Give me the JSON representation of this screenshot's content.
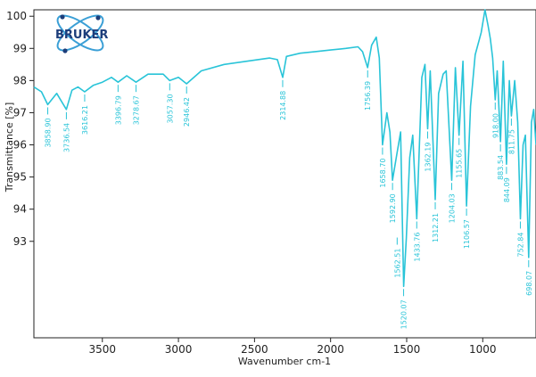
{
  "logo": {
    "text": "BRUKER",
    "accent": "#1c3d7a",
    "ring": "#3a9fd6"
  },
  "chart_data": {
    "type": "line",
    "xlabel": "Wavenumber cm-1",
    "ylabel": "Transmittance [%]",
    "xlim": [
      3950,
      650
    ],
    "ylim": [
      90,
      100.2
    ],
    "x_reversed": true,
    "xticks": [
      3500,
      3000,
      2500,
      2000,
      1500,
      1000
    ],
    "yticks": [
      93,
      94,
      95,
      96,
      97,
      98,
      99,
      100
    ],
    "grid": false,
    "line_color": "#29c4d8",
    "series": [
      {
        "x": [
          3950,
          3900,
          3858.9,
          3800,
          3736.5,
          3700,
          3660,
          3616.2,
          3560,
          3500,
          3440,
          3396.8,
          3340,
          3278.7,
          3200,
          3100,
          3057.3,
          3000,
          2946.4,
          2850,
          2700,
          2550,
          2400,
          2350,
          2314.9,
          2290,
          2200,
          2100,
          2000,
          1900,
          1820,
          1790,
          1756.4,
          1730,
          1700,
          1680,
          1658.7,
          1630,
          1610,
          1592.9,
          1565,
          1540,
          1520.1,
          1502.5,
          1480,
          1460,
          1433.8,
          1400,
          1380,
          1362.2,
          1345,
          1312.2,
          1290,
          1260,
          1240,
          1204,
          1180,
          1155.7,
          1130,
          1106.6,
          1080,
          1050,
          1010,
          985,
          965,
          950,
          935,
          918.1,
          905,
          883.5,
          865,
          844.1,
          825,
          811.8,
          790,
          770,
          752.8,
          735,
          720,
          698.1,
          680,
          665,
          650
        ],
        "y": [
          97.8,
          97.65,
          97.25,
          97.6,
          97.1,
          97.7,
          97.8,
          97.65,
          97.85,
          97.95,
          98.1,
          97.95,
          98.15,
          97.95,
          98.2,
          98.2,
          98.0,
          98.1,
          97.9,
          98.3,
          98.5,
          98.6,
          98.7,
          98.65,
          98.1,
          98.75,
          98.85,
          98.9,
          98.95,
          99.0,
          99.05,
          98.9,
          98.4,
          99.1,
          99.35,
          98.7,
          96.0,
          97.0,
          96.4,
          94.9,
          95.7,
          96.4,
          91.6,
          93.1,
          95.6,
          96.3,
          93.7,
          98.1,
          98.5,
          96.5,
          98.3,
          94.3,
          97.6,
          98.2,
          98.3,
          94.9,
          98.4,
          96.3,
          98.6,
          94.1,
          97.2,
          98.8,
          99.5,
          100.2,
          99.7,
          99.3,
          98.7,
          97.4,
          98.3,
          96.1,
          98.6,
          95.4,
          98.0,
          96.9,
          98.0,
          96.7,
          93.7,
          96.0,
          96.3,
          92.5,
          96.7,
          97.1,
          96.0
        ]
      }
    ],
    "annotations": [
      {
        "label": "3858.90",
        "x": 3858.9,
        "y": 97.25
      },
      {
        "label": "3736.54",
        "x": 3736.5,
        "y": 97.1
      },
      {
        "label": "3616.21",
        "x": 3616.2,
        "y": 97.65
      },
      {
        "label": "3396.79",
        "x": 3396.8,
        "y": 97.95
      },
      {
        "label": "3278.67",
        "x": 3278.7,
        "y": 97.95
      },
      {
        "label": "3057.30",
        "x": 3057.3,
        "y": 98.0
      },
      {
        "label": "2946.42",
        "x": 2946.4,
        "y": 97.9
      },
      {
        "label": "2314.88",
        "x": 2314.9,
        "y": 98.1
      },
      {
        "label": "1756.39",
        "x": 1756.4,
        "y": 98.4
      },
      {
        "label": "1658.70",
        "x": 1658.7,
        "y": 96.0
      },
      {
        "label": "1592.90",
        "x": 1592.9,
        "y": 94.9
      },
      {
        "label": "1562.51",
        "x": 1562.5,
        "y": 93.2
      },
      {
        "label": "1520.07",
        "x": 1520.1,
        "y": 91.6
      },
      {
        "label": "1433.76",
        "x": 1433.8,
        "y": 93.7
      },
      {
        "label": "1362.19",
        "x": 1362.2,
        "y": 96.5
      },
      {
        "label": "1312.21",
        "x": 1312.2,
        "y": 94.3
      },
      {
        "label": "1204.03",
        "x": 1204.0,
        "y": 94.9
      },
      {
        "label": "1155.65",
        "x": 1155.7,
        "y": 96.3
      },
      {
        "label": "1106.57",
        "x": 1106.6,
        "y": 94.1
      },
      {
        "label": "918.00",
        "x": 918.0,
        "y": 97.4
      },
      {
        "label": "883.54",
        "x": 883.5,
        "y": 96.1
      },
      {
        "label": "844.09",
        "x": 844.1,
        "y": 95.4
      },
      {
        "label": "811.75",
        "x": 811.8,
        "y": 96.9
      },
      {
        "label": "752.84",
        "x": 752.8,
        "y": 93.7
      },
      {
        "label": "698.07",
        "x": 698.1,
        "y": 92.5
      }
    ]
  }
}
